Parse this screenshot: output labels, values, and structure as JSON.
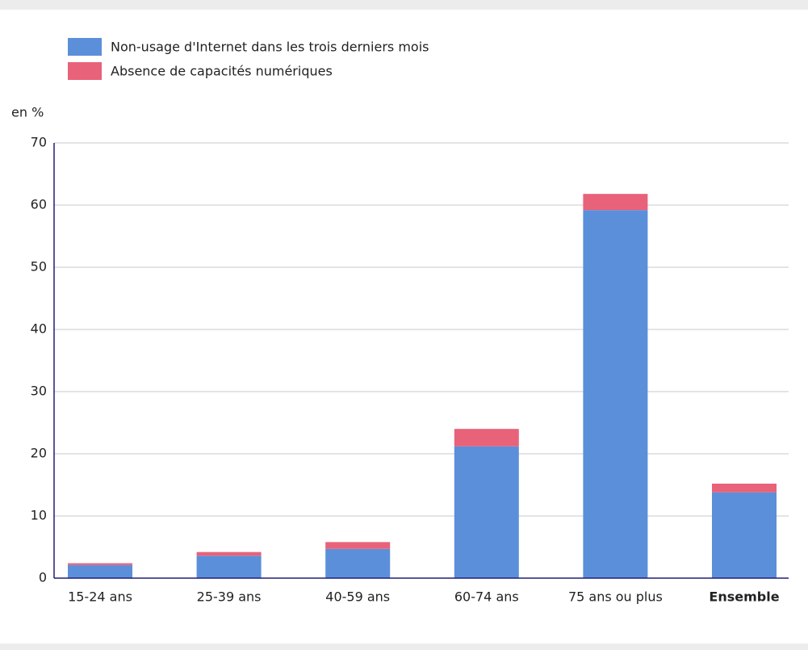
{
  "chart_data": {
    "type": "stacked_bar",
    "y_label": "en %",
    "categories": [
      "15-24 ans",
      "25-39 ans",
      "40-59 ans",
      "60-74 ans",
      "75 ans ou plus",
      "Ensemble"
    ],
    "series": [
      {
        "name": "Non-usage d'Internet dans les trois derniers mois",
        "color": "#5b8fd9",
        "values": [
          2.1,
          3.6,
          4.7,
          21.2,
          59.2,
          13.8
        ]
      },
      {
        "name": "Absence de capacités numériques",
        "color": "#e8627a",
        "values": [
          0.3,
          0.6,
          1.1,
          2.8,
          2.6,
          1.4
        ]
      }
    ],
    "ylim": [
      0,
      70
    ],
    "yticks": [
      0,
      10,
      20,
      30,
      40,
      50,
      60,
      70
    ],
    "grid": true,
    "legend": "top-left"
  }
}
